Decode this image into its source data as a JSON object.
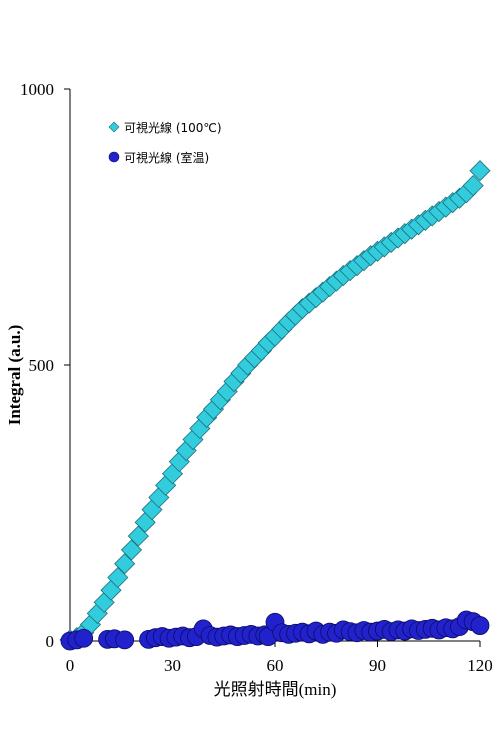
{
  "chart_data": {
    "type": "scatter",
    "xlabel": "光照射時間(min)",
    "ylabel": "Integral (a.u.)",
    "xlim": [
      0,
      120
    ],
    "ylim": [
      0,
      1000
    ],
    "xticks": [
      0,
      30,
      60,
      90,
      120
    ],
    "yticks": [
      0,
      500,
      1000
    ],
    "grid": false,
    "legend_position": "top-left",
    "series": [
      {
        "name": "可視光線 (100℃)",
        "marker": "diamond",
        "color": "#33ccdd",
        "x": [
          0,
          2,
          4,
          6,
          8,
          10,
          12,
          14,
          16,
          18,
          20,
          22,
          24,
          26,
          28,
          30,
          32,
          34,
          36,
          38,
          40,
          42,
          44,
          46,
          48,
          50,
          52,
          54,
          56,
          58,
          60,
          62,
          64,
          66,
          68,
          70,
          72,
          74,
          76,
          78,
          80,
          82,
          84,
          86,
          88,
          90,
          92,
          94,
          96,
          98,
          100,
          102,
          104,
          106,
          108,
          110,
          112,
          114,
          116,
          118,
          120
        ],
        "y": [
          2,
          6,
          15,
          30,
          50,
          70,
          92,
          115,
          140,
          165,
          190,
          215,
          238,
          260,
          282,
          303,
          325,
          345,
          365,
          385,
          405,
          420,
          437,
          452,
          470,
          485,
          500,
          513,
          526,
          540,
          552,
          565,
          578,
          590,
          602,
          612,
          622,
          632,
          642,
          652,
          662,
          671,
          680,
          689,
          698,
          706,
          714,
          722,
          730,
          738,
          746,
          754,
          762,
          770,
          778,
          786,
          794,
          802,
          812,
          825,
          852
        ]
      },
      {
        "name": "可視光線 (室温)",
        "marker": "circle",
        "color": "#2222cc",
        "x": [
          0,
          2,
          4,
          11,
          13,
          16,
          23,
          25,
          27,
          29,
          31,
          33,
          35,
          37,
          39,
          41,
          43,
          45,
          47,
          49,
          51,
          53,
          55,
          57,
          58,
          60,
          62,
          64,
          66,
          68,
          70,
          72,
          74,
          76,
          78,
          80,
          82,
          84,
          86,
          88,
          90,
          92,
          94,
          96,
          98,
          100,
          102,
          104,
          106,
          108,
          110,
          112,
          114,
          116,
          118,
          120
        ],
        "y": [
          0,
          2,
          5,
          3,
          4,
          2,
          3,
          6,
          8,
          5,
          7,
          9,
          6,
          8,
          22,
          10,
          7,
          9,
          11,
          8,
          10,
          12,
          9,
          11,
          8,
          34,
          15,
          12,
          14,
          16,
          13,
          18,
          12,
          16,
          14,
          20,
          17,
          15,
          19,
          16,
          18,
          21,
          17,
          20,
          18,
          22,
          19,
          21,
          23,
          20,
          24,
          22,
          26,
          38,
          35,
          28
        ]
      }
    ]
  }
}
